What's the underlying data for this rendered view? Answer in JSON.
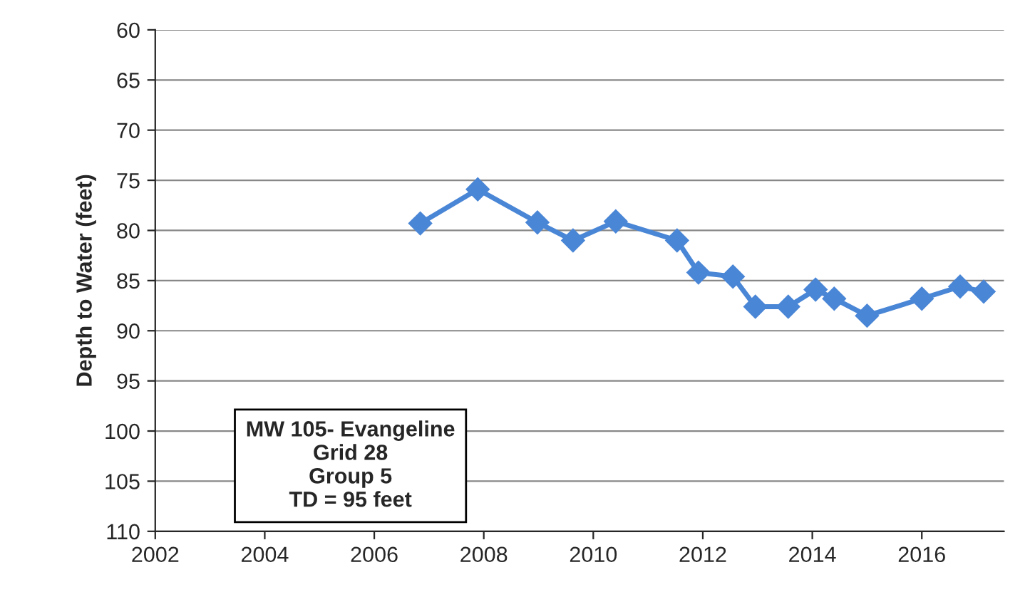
{
  "chart_data": {
    "type": "line",
    "ylabel": "Depth to Water (feet)",
    "x": [
      2006.84,
      2007.89,
      2008.98,
      2009.63,
      2010.41,
      2011.53,
      2011.92,
      2012.55,
      2012.96,
      2013.56,
      2014.06,
      2014.4,
      2015.0,
      2016.0,
      2016.7,
      2017.13
    ],
    "series": [
      {
        "color": "#4a86d6",
        "values": [
          79.3,
          75.9,
          79.2,
          81.0,
          79.1,
          81.0,
          84.2,
          84.6,
          87.6,
          87.6,
          85.9,
          86.8,
          88.5,
          86.8,
          85.6,
          86.1
        ]
      }
    ],
    "xlim": [
      2002,
      2017.5
    ],
    "xticks": [
      2002,
      2004,
      2006,
      2008,
      2010,
      2012,
      2014,
      2016
    ],
    "ylim": [
      110,
      60
    ],
    "yticks": [
      60,
      65,
      70,
      75,
      80,
      85,
      90,
      95,
      100,
      105,
      110
    ],
    "grid": "y",
    "marker": "diamond",
    "line_style": "solid",
    "annotations": [
      "MW 105- Evangeline\nGrid 28\nGroup 5\nTD = 95 feet"
    ]
  }
}
